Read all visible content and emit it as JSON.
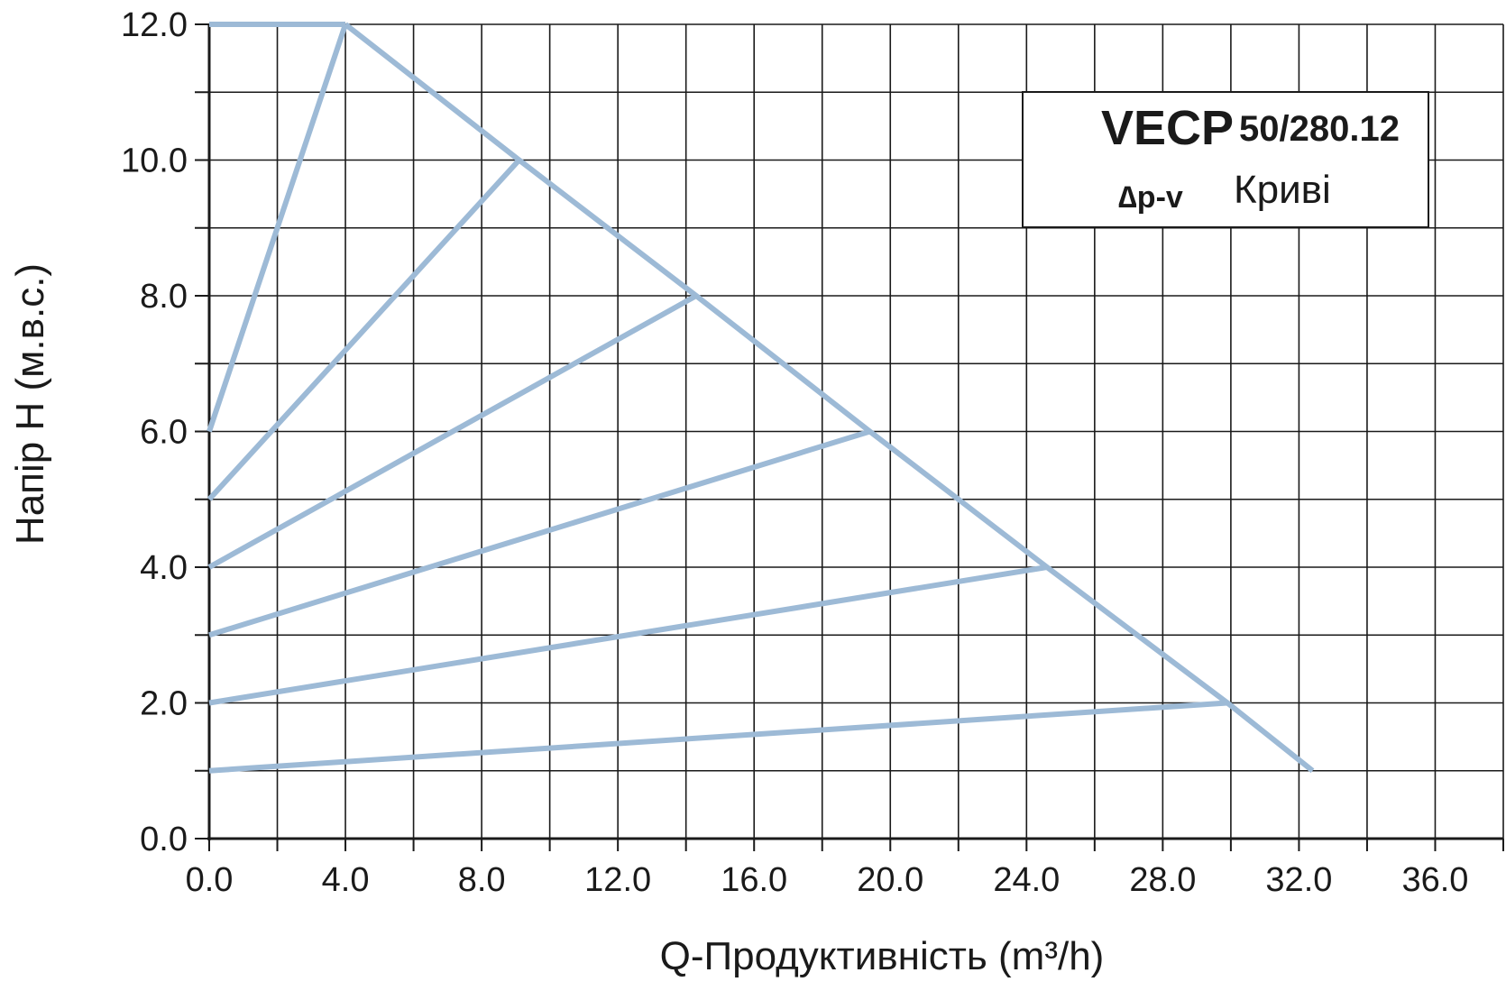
{
  "chart_data": {
    "type": "line",
    "xlabel": "Q-Продуктивність (m³/h)",
    "ylabel": "Напір H (м.в.с.)",
    "xlim": [
      0,
      38
    ],
    "ylim": [
      0,
      12
    ],
    "x_ticks": [
      "0.0",
      "4.0",
      "8.0",
      "12.0",
      "16.0",
      "20.0",
      "24.0",
      "28.0",
      "32.0",
      "36.0"
    ],
    "y_ticks": [
      "0.0",
      "2.0",
      "4.0",
      "6.0",
      "8.0",
      "10.0",
      "12.0"
    ],
    "grid": true,
    "legend": {
      "model": "VECP",
      "size": "50/280.12",
      "mode": "∆p-v",
      "label": "Криві",
      "placement": "top-right"
    },
    "series_color": "#9dbad6",
    "series": [
      {
        "x": [
          0,
          4.0
        ],
        "y": [
          12.0,
          12.0
        ]
      },
      {
        "x": [
          4.0,
          9.1,
          14.3,
          19.4,
          24.6,
          29.9,
          32.4
        ],
        "y": [
          12.0,
          10.0,
          8.0,
          6.0,
          4.0,
          2.0,
          1.0
        ]
      },
      {
        "x": [
          0,
          4.0
        ],
        "y": [
          6.0,
          12.0
        ]
      },
      {
        "x": [
          0,
          9.1
        ],
        "y": [
          5.0,
          10.0
        ]
      },
      {
        "x": [
          0,
          14.3
        ],
        "y": [
          4.0,
          8.0
        ]
      },
      {
        "x": [
          0,
          19.4
        ],
        "y": [
          3.0,
          6.0
        ]
      },
      {
        "x": [
          0,
          24.6
        ],
        "y": [
          2.0,
          4.0
        ]
      },
      {
        "x": [
          0,
          29.9
        ],
        "y": [
          1.0,
          2.0
        ]
      }
    ]
  }
}
